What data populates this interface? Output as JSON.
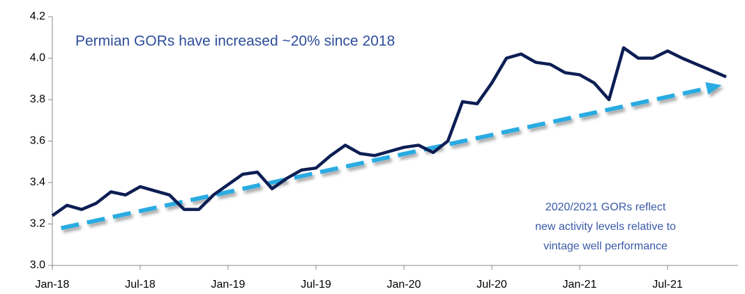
{
  "chart_data": {
    "type": "line",
    "annotation": "Permian GORs have increased ~20% since 2018",
    "note": [
      "2020/2021 GORs reflect",
      "new activity levels relative to",
      "vintage well performance"
    ],
    "categories": [
      "Jan-18",
      null,
      null,
      null,
      null,
      null,
      "Jul-18",
      null,
      null,
      null,
      null,
      null,
      "Jan-19",
      null,
      null,
      null,
      null,
      null,
      "Jul-19",
      null,
      null,
      null,
      null,
      null,
      "Jan-20",
      null,
      null,
      null,
      null,
      null,
      "Jul-20",
      null,
      null,
      null,
      null,
      null,
      "Jan-21",
      null,
      null,
      null,
      null,
      null,
      "Jul-21",
      null,
      null,
      null,
      null
    ],
    "series": [
      {
        "color": "#0d1e54",
        "values": [
          3.24,
          3.29,
          3.27,
          3.3,
          3.355,
          3.34,
          3.38,
          3.36,
          3.34,
          3.27,
          3.27,
          3.34,
          3.39,
          3.44,
          3.45,
          3.37,
          3.42,
          3.46,
          3.47,
          3.53,
          3.58,
          3.54,
          3.53,
          3.55,
          3.57,
          3.58,
          3.545,
          3.6,
          3.79,
          3.78,
          3.88,
          4.0,
          4.02,
          3.98,
          3.97,
          3.93,
          3.92,
          3.88,
          3.8,
          4.05,
          4.0,
          4.0,
          4.035,
          4.0,
          3.97,
          3.94,
          3.91
        ]
      }
    ],
    "trend": {
      "color": "#29abe2",
      "values": [
        3.18,
        3.87
      ]
    },
    "ylim": [
      3.0,
      4.2
    ],
    "yticks": [
      {
        "value": 3.0,
        "label": "3.0"
      },
      3.2,
      3.4,
      3.6,
      3.8,
      {
        "value": 4.0,
        "label": "4.0"
      },
      4.2
    ]
  }
}
